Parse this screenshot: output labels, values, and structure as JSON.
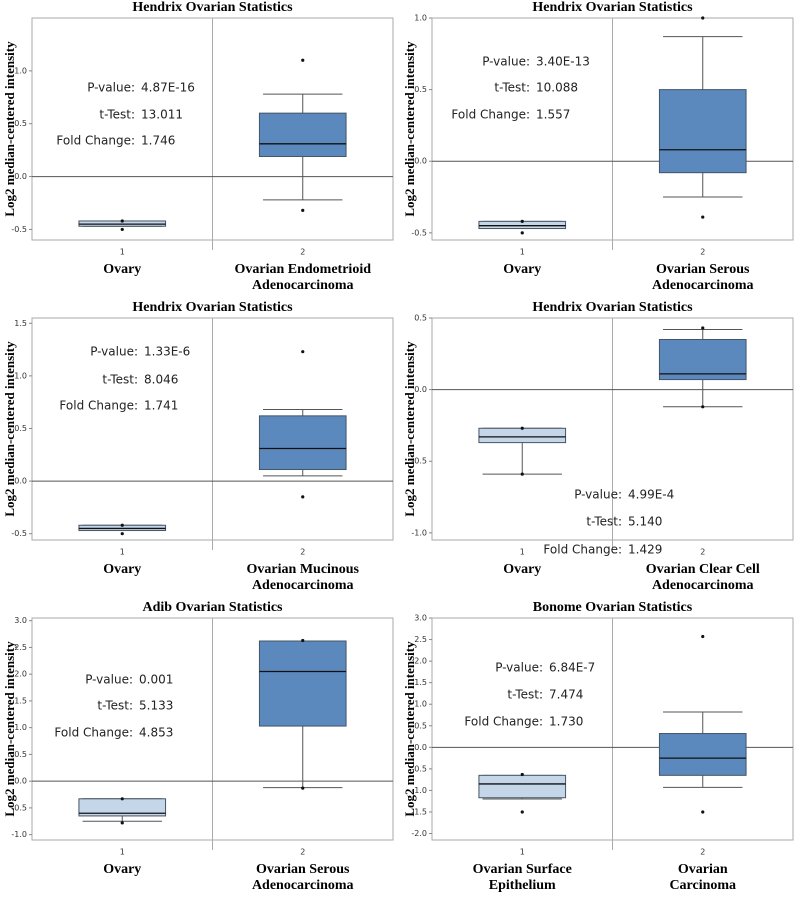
{
  "chart_data": [
    {
      "type": "box",
      "title": "Hendrix Ovarian Statistics",
      "ylabel": "Log2 median-centered intensity",
      "categories": [
        "Ovary",
        "Ovarian Endometrioid\nAdenocarcinoma"
      ],
      "box_labels": [
        "1",
        "2"
      ],
      "colors": [
        "#c6d6e9",
        "#5b88bd"
      ],
      "stats": [
        {
          "label": "P-value:",
          "value": "4.87E-16"
        },
        {
          "label": "t-Test:",
          "value": "13.011"
        },
        {
          "label": "Fold Change:",
          "value": "1.746"
        }
      ],
      "ylim": [
        -0.6,
        1.5
      ],
      "yticks": [
        -0.5,
        {
          "value": 0,
          "label": "0.0"
        },
        0.5,
        {
          "value": 1,
          "label": "1.0"
        }
      ],
      "boxes": [
        {
          "min": -0.47,
          "q1": -0.47,
          "median": -0.45,
          "q3": -0.42,
          "max": -0.42,
          "outliers": [
            -0.42,
            -0.5
          ]
        },
        {
          "min": -0.22,
          "q1": 0.19,
          "median": 0.31,
          "q3": 0.6,
          "max": 0.78,
          "outliers": [
            1.1,
            -0.32
          ]
        }
      ]
    },
    {
      "type": "box",
      "title": "Hendrix Ovarian Statistics",
      "ylabel": "Log2 median-centered intensity",
      "categories": [
        "Ovary",
        "Ovarian Serous\nAdenocarcinoma"
      ],
      "box_labels": [
        "1",
        "2"
      ],
      "colors": [
        "#c6d6e9",
        "#5b88bd"
      ],
      "stats": [
        {
          "label": "P-value:",
          "value": "3.40E-13"
        },
        {
          "label": "t-Test:",
          "value": "10.088"
        },
        {
          "label": "Fold Change:",
          "value": "1.557"
        }
      ],
      "ylim": [
        -0.55,
        1.0
      ],
      "yticks": [
        -0.5,
        {
          "value": 0,
          "label": "0.0"
        },
        0.5,
        {
          "value": 1,
          "label": "1.0"
        }
      ],
      "boxes": [
        {
          "min": -0.47,
          "q1": -0.47,
          "median": -0.45,
          "q3": -0.42,
          "max": -0.42,
          "outliers": [
            -0.42,
            -0.5
          ]
        },
        {
          "min": -0.25,
          "q1": -0.08,
          "median": 0.08,
          "q3": 0.5,
          "max": 0.87,
          "outliers": [
            1.0,
            -0.39
          ]
        }
      ]
    },
    {
      "type": "box",
      "title": "Hendrix Ovarian Statistics",
      "ylabel": "Log2 median-centered intensity",
      "categories": [
        "Ovary",
        "Ovarian Mucinous\nAdenocarcinoma"
      ],
      "box_labels": [
        "1",
        "2"
      ],
      "colors": [
        "#c6d6e9",
        "#5b88bd"
      ],
      "stats": [
        {
          "label": "P-value:",
          "value": "1.33E-6"
        },
        {
          "label": "t-Test:",
          "value": "8.046"
        },
        {
          "label": "Fold Change:",
          "value": "1.741"
        }
      ],
      "ylim": [
        -0.56,
        1.55
      ],
      "yticks": [
        -0.5,
        {
          "value": 0,
          "label": "0.0"
        },
        0.5,
        {
          "value": 1,
          "label": "1.0"
        },
        1.5
      ],
      "boxes": [
        {
          "min": -0.47,
          "q1": -0.47,
          "median": -0.45,
          "q3": -0.42,
          "max": -0.42,
          "outliers": [
            -0.42,
            -0.5
          ]
        },
        {
          "min": 0.05,
          "q1": 0.11,
          "median": 0.31,
          "q3": 0.62,
          "max": 0.68,
          "outliers": [
            1.23,
            -0.15
          ]
        }
      ]
    },
    {
      "type": "box",
      "title": "Hendrix Ovarian Statistics",
      "ylabel": "Log2 median-centered intensity",
      "categories": [
        "Ovary",
        "Ovarian Clear Cell\nAdenocarcinoma"
      ],
      "box_labels": [
        "1",
        "2"
      ],
      "colors": [
        "#c6d6e9",
        "#5b88bd"
      ],
      "stats": [
        {
          "label": "P-value:",
          "value": "4.99E-4"
        },
        {
          "label": "t-Test:",
          "value": "5.140"
        },
        {
          "label": "Fold Change:",
          "value": "1.429"
        }
      ],
      "ylim": [
        -1.05,
        0.5
      ],
      "yticks": [
        {
          "value": -1,
          "label": "-1.0"
        },
        -0.5,
        {
          "value": 0,
          "label": "0.0"
        },
        0.5
      ],
      "boxes": [
        {
          "min": -0.59,
          "q1": -0.37,
          "median": -0.33,
          "q3": -0.27,
          "max": -0.27,
          "outliers": [
            -0.27,
            -0.59
          ]
        },
        {
          "min": -0.12,
          "q1": 0.07,
          "median": 0.11,
          "q3": 0.35,
          "max": 0.42,
          "outliers": [
            0.43,
            -0.12
          ]
        }
      ]
    },
    {
      "type": "box",
      "title": "Adib Ovarian Statistics",
      "ylabel": "Log2 median-centered intensity",
      "categories": [
        "Ovary",
        "Ovarian Serous\nAdenocarcinoma"
      ],
      "box_labels": [
        "1",
        "2"
      ],
      "colors": [
        "#c6d6e9",
        "#5b88bd"
      ],
      "stats": [
        {
          "label": "P-value:",
          "value": "0.001"
        },
        {
          "label": "t-Test:",
          "value": "5.133"
        },
        {
          "label": "Fold Change:",
          "value": "4.853"
        }
      ],
      "ylim": [
        -1.1,
        3.05
      ],
      "yticks": [
        {
          "value": -1,
          "label": "-1.0"
        },
        -0.5,
        {
          "value": 0,
          "label": "0.0"
        },
        0.5,
        {
          "value": 1,
          "label": "1.0"
        },
        1.5,
        {
          "value": 2,
          "label": "2.0"
        },
        2.5,
        {
          "value": 3,
          "label": "3.0"
        }
      ],
      "boxes": [
        {
          "min": -0.75,
          "q1": -0.65,
          "median": -0.6,
          "q3": -0.33,
          "max": -0.33,
          "outliers": [
            -0.33,
            -0.78
          ]
        },
        {
          "min": -0.12,
          "q1": 1.03,
          "median": 2.05,
          "q3": 2.62,
          "max": 2.62,
          "outliers": [
            2.63,
            -0.13
          ]
        }
      ]
    },
    {
      "type": "box",
      "title": "Bonome Ovarian Statistics",
      "ylabel": "Log2 median-centered intensity",
      "categories": [
        "Ovarian Surface\nEpithelium",
        "Ovarian\nCarcinoma"
      ],
      "box_labels": [
        "1",
        "2"
      ],
      "colors": [
        "#c6d6e9",
        "#5b88bd"
      ],
      "stats": [
        {
          "label": "P-value:",
          "value": "6.84E-7"
        },
        {
          "label": "t-Test:",
          "value": "7.474"
        },
        {
          "label": "Fold Change:",
          "value": "1.730"
        }
      ],
      "ylim": [
        -2.15,
        3.0
      ],
      "yticks": [
        {
          "value": -2,
          "label": "-2.0"
        },
        -1.5,
        {
          "value": -1,
          "label": "-1.0"
        },
        -0.5,
        {
          "value": 0,
          "label": "0.0"
        },
        0.5,
        {
          "value": 1,
          "label": "1.0"
        },
        1.5,
        {
          "value": 2,
          "label": "2.0"
        },
        2.5,
        {
          "value": 3,
          "label": "3.0"
        }
      ],
      "boxes": [
        {
          "min": -1.2,
          "q1": -1.17,
          "median": -0.85,
          "q3": -0.65,
          "max": -0.65,
          "outliers": [
            -0.63,
            -1.5
          ]
        },
        {
          "min": -0.93,
          "q1": -0.65,
          "median": -0.25,
          "q3": 0.32,
          "max": 0.82,
          "outliers": [
            2.57,
            -1.5
          ]
        }
      ]
    }
  ]
}
